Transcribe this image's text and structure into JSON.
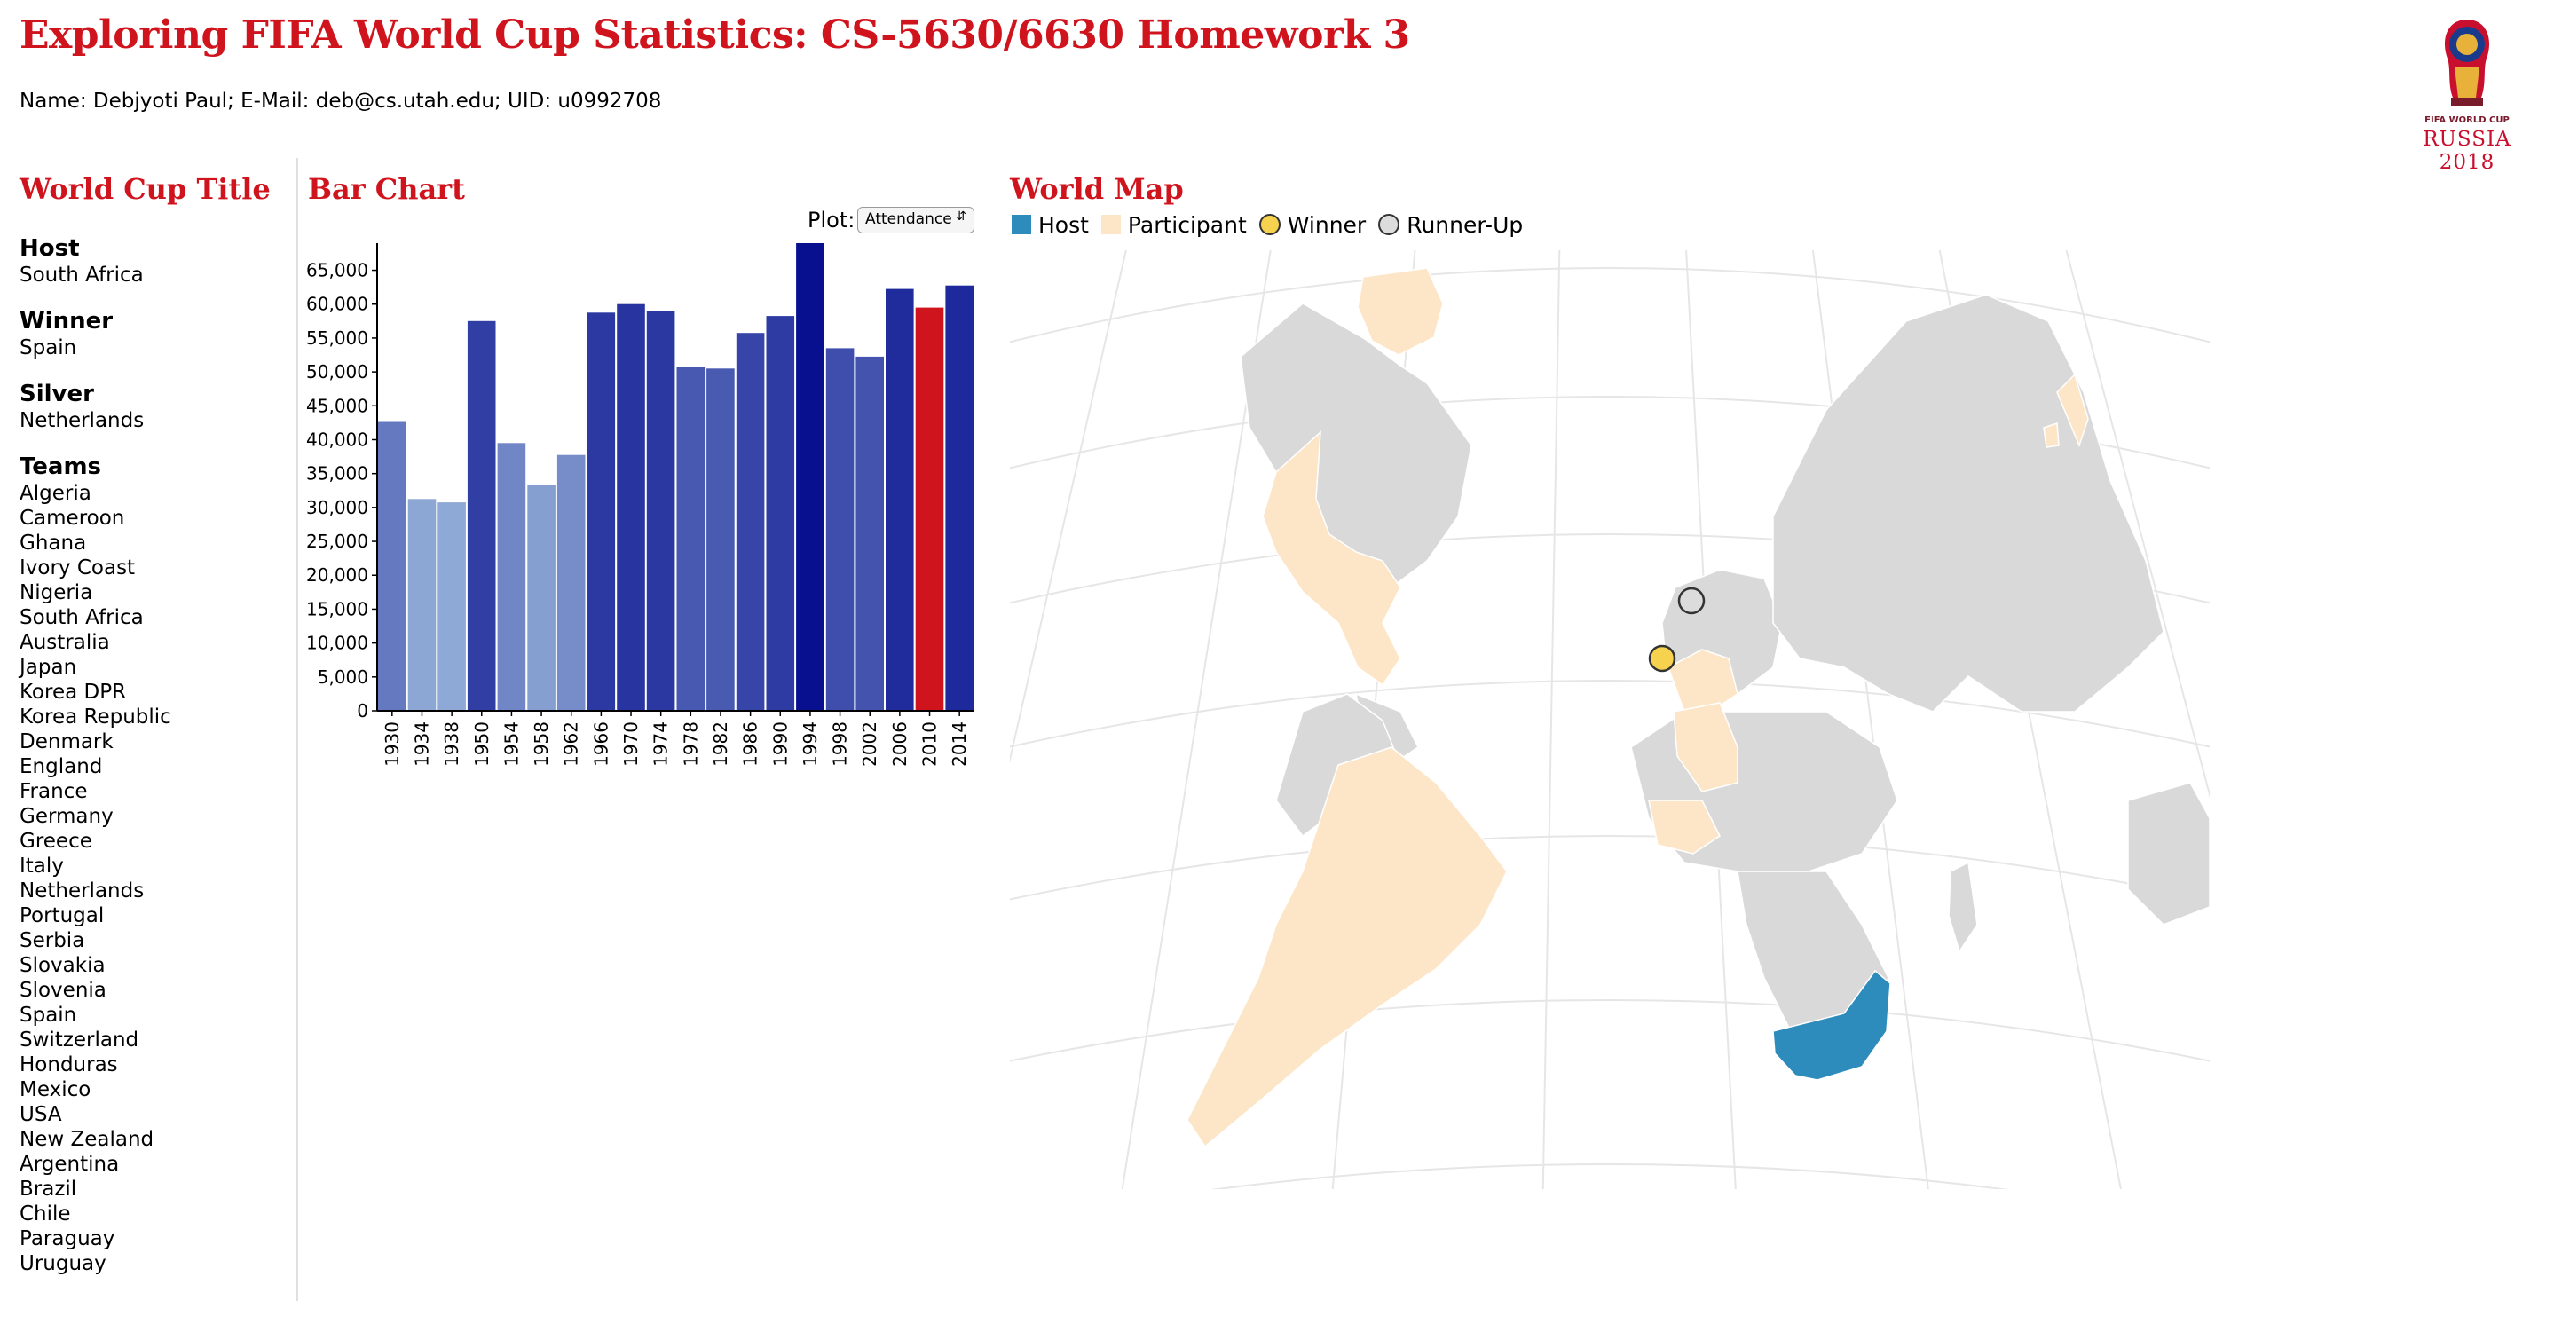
{
  "header": {
    "title": "Exploring FIFA World Cup Statistics: CS-5630/6630 Homework 3",
    "subtitle": "Name: Debjyoti Paul; E-Mail: deb@cs.utah.edu; UID: u0992708",
    "logo_text_small": "FIFA WORLD CUP",
    "logo_text": "RUSSIA 2018"
  },
  "info_panel": {
    "heading": "World Cup Title",
    "host_label": "Host",
    "host": "South Africa",
    "winner_label": "Winner",
    "winner": "Spain",
    "silver_label": "Silver",
    "silver": "Netherlands",
    "teams_label": "Teams",
    "teams": [
      "Algeria",
      "Cameroon",
      "Ghana",
      "Ivory Coast",
      "Nigeria",
      "South Africa",
      "Australia",
      "Japan",
      "Korea DPR",
      "Korea Republic",
      "Denmark",
      "England",
      "France",
      "Germany",
      "Greece",
      "Italy",
      "Netherlands",
      "Portugal",
      "Serbia",
      "Slovakia",
      "Slovenia",
      "Spain",
      "Switzerland",
      "Honduras",
      "Mexico",
      "USA",
      "New Zealand",
      "Argentina",
      "Brazil",
      "Chile",
      "Paraguay",
      "Uruguay"
    ]
  },
  "bar_panel": {
    "heading": "Bar Chart",
    "plot_label": "Plot:",
    "plot_selected": "Attendance"
  },
  "chart_data": {
    "type": "bar",
    "categories": [
      "1930",
      "1934",
      "1938",
      "1950",
      "1954",
      "1958",
      "1962",
      "1966",
      "1970",
      "1974",
      "1978",
      "1982",
      "1986",
      "1990",
      "1994",
      "1998",
      "2002",
      "2006",
      "2010",
      "2014"
    ],
    "values": [
      42750,
      31250,
      30750,
      57500,
      39500,
      33250,
      37750,
      58750,
      60000,
      59000,
      50750,
      50500,
      55750,
      58250,
      69000,
      53500,
      52250,
      62250,
      59500,
      62750
    ],
    "y_ticks": [
      "0",
      "5,000",
      "10,000",
      "15,000",
      "20,000",
      "25,000",
      "30,000",
      "35,000",
      "40,000",
      "45,000",
      "50,000",
      "55,000",
      "60,000",
      "65,000"
    ],
    "ylim": [
      0,
      69000
    ],
    "selected_category": "2010",
    "selected_color": "#d0141e",
    "color_low": "#8fa9d6",
    "color_high": "#08108f",
    "xlabel": "",
    "ylabel": "",
    "grid": false
  },
  "map_panel": {
    "heading": "World Map",
    "legend": [
      {
        "label": "Host",
        "color": "#2e8cbd",
        "shape": "square"
      },
      {
        "label": "Participant",
        "color": "#fde6c8",
        "shape": "square"
      },
      {
        "label": "Winner",
        "color": "#f6d24f",
        "shape": "circle"
      },
      {
        "label": "Runner-Up",
        "color": "#dcdcdc",
        "shape": "circle"
      }
    ],
    "colors": {
      "land": "#d9d9d9",
      "graticule": "#e6e6e6",
      "border": "#ffffff"
    }
  }
}
